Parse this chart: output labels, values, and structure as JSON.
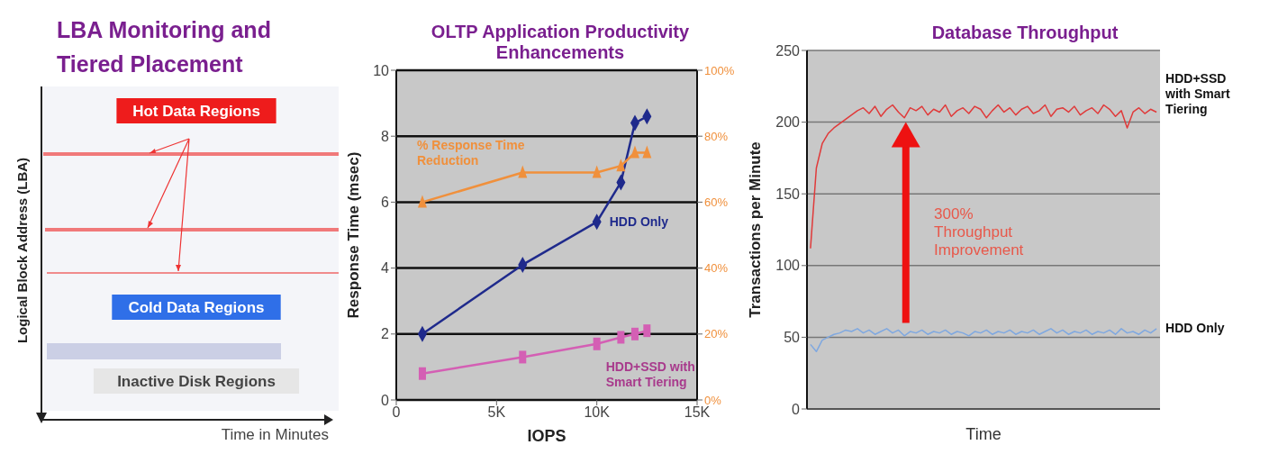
{
  "chart_data": [
    {
      "type": "other",
      "title": "LBA Monitoring and Tiered Placement",
      "xlabel": "Time in Minutes",
      "ylabel": "Logical Block Address (LBA)",
      "annotations": [
        "Hot Data Regions",
        "Cold Data Regions",
        "Inactive Disk Regions"
      ]
    },
    {
      "type": "line",
      "title": "OLTP Application Productivity Enhancements",
      "xlabel": "IOPS",
      "ylabel": "Response Time (msec)",
      "x": [
        1300,
        6300,
        10000,
        11200,
        11900,
        12500
      ],
      "xlim": [
        0,
        15000
      ],
      "xticks": [
        0,
        {
          "value": 5000,
          "label": "5K"
        },
        {
          "value": 10000,
          "label": "10K"
        },
        {
          "value": 15000,
          "label": "15K"
        }
      ],
      "ylim": [
        0,
        10
      ],
      "yticks": [
        0,
        2,
        4,
        6,
        8,
        10
      ],
      "y2lim": [
        0,
        100
      ],
      "y2ticks": [
        {
          "value": 0,
          "label": "0%"
        },
        {
          "value": 20,
          "label": "20%"
        },
        {
          "value": 40,
          "label": "40%"
        },
        {
          "value": 60,
          "label": "60%"
        },
        {
          "value": 80,
          "label": "80%"
        },
        {
          "value": 100,
          "label": "100%"
        }
      ],
      "grid": "y",
      "legend": false,
      "series": [
        {
          "name": "HDD Only",
          "color": "#1f2a8c",
          "marker": "diamond",
          "values": [
            2.0,
            4.1,
            5.4,
            6.6,
            8.4,
            8.6
          ]
        },
        {
          "name": "HDD+SSD with Smart Tiering",
          "color": "#d45fb4",
          "marker": "square",
          "values": [
            0.8,
            1.3,
            1.7,
            1.9,
            2.0,
            2.1
          ]
        },
        {
          "name": "% Response Time Reduction",
          "color": "#f0903c",
          "marker": "triangle",
          "axis": "y2",
          "values": [
            60,
            69,
            69,
            71,
            75,
            75
          ]
        }
      ]
    },
    {
      "type": "line",
      "title": "Database Throughput",
      "xlabel": "Time",
      "ylabel": "Transactions per Minute",
      "categories": [
        null,
        null,
        null,
        null,
        null,
        null,
        null,
        null,
        null,
        null,
        null,
        null,
        null,
        null,
        null,
        null,
        null,
        null,
        null,
        null,
        null,
        null,
        null,
        null,
        null,
        null,
        null,
        null,
        null,
        null,
        null,
        null,
        null,
        null,
        null,
        null,
        null,
        null,
        null,
        null,
        null,
        null,
        null,
        null,
        null,
        null,
        null,
        null,
        null,
        null,
        null,
        null,
        null,
        null,
        null,
        null,
        null,
        null,
        null,
        null
      ],
      "ylim": [
        0,
        250
      ],
      "yticks": [
        0,
        50,
        100,
        150,
        200,
        250
      ],
      "grid": "y",
      "legend": false,
      "annotations": [
        "300% Throughput Improvement"
      ],
      "series": [
        {
          "name": "HDD+SSD with Smart Tiering",
          "color": "#e03a3a",
          "values": [
            112,
            168,
            185,
            192,
            196,
            199,
            202,
            205,
            208,
            210,
            206,
            211,
            204,
            209,
            212,
            207,
            203,
            210,
            208,
            211,
            205,
            209,
            207,
            212,
            204,
            208,
            210,
            206,
            211,
            209,
            203,
            208,
            212,
            207,
            210,
            205,
            209,
            211,
            206,
            208,
            212,
            204,
            209,
            210,
            207,
            211,
            205,
            208,
            210,
            206,
            212,
            209,
            204,
            208,
            196,
            207,
            210,
            206,
            209,
            207
          ]
        },
        {
          "name": "HDD Only",
          "color": "#7fa8e0",
          "values": [
            45,
            40,
            48,
            50,
            52,
            53,
            55,
            54,
            56,
            53,
            55,
            52,
            54,
            56,
            53,
            55,
            51,
            54,
            53,
            55,
            52,
            54,
            53,
            55,
            52,
            54,
            53,
            51,
            54,
            53,
            55,
            52,
            54,
            53,
            55,
            52,
            54,
            53,
            55,
            52,
            54,
            56,
            53,
            55,
            52,
            54,
            53,
            55,
            52,
            54,
            53,
            55,
            52,
            56,
            53,
            54,
            52,
            55,
            53,
            56
          ]
        }
      ]
    }
  ]
}
